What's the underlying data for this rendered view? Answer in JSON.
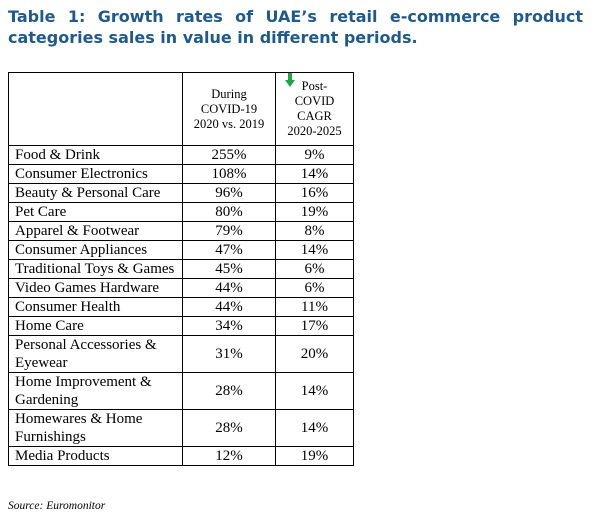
{
  "title": "Table 1: Growth rates of UAE’s retail e-commerce product categories sales in value in different periods.",
  "table": {
    "header": [
      [
        "During",
        "COVID-19",
        "2020 vs. 2019"
      ],
      [
        "Post-",
        "COVID",
        "CAGR",
        "2020-2025"
      ]
    ],
    "rows": [
      [
        "Food & Drink",
        "255%",
        "9%"
      ],
      [
        "Consumer Electronics",
        "108%",
        "14%"
      ],
      [
        "Beauty & Personal Care",
        "96%",
        "16%"
      ],
      [
        "Pet Care",
        "80%",
        "19%"
      ],
      [
        "Apparel & Footwear",
        "79%",
        "8%"
      ],
      [
        "Consumer Appliances",
        "47%",
        "14%"
      ],
      [
        "Traditional Toys & Games",
        "45%",
        "6%"
      ],
      [
        "Video Games Hardware",
        "44%",
        "6%"
      ],
      [
        "Consumer Health",
        "44%",
        "11%"
      ],
      [
        "Home Care",
        "34%",
        "17%"
      ],
      [
        "Personal Accessories & Eyewear",
        "31%",
        "20%"
      ],
      [
        "Home Improvement & Gardening",
        "28%",
        "14%"
      ],
      [
        "Homewares & Home Furnishings",
        "28%",
        "14%"
      ],
      [
        "Media Products",
        "12%",
        "19%"
      ]
    ]
  },
  "source": "Source: Euromonitor"
}
